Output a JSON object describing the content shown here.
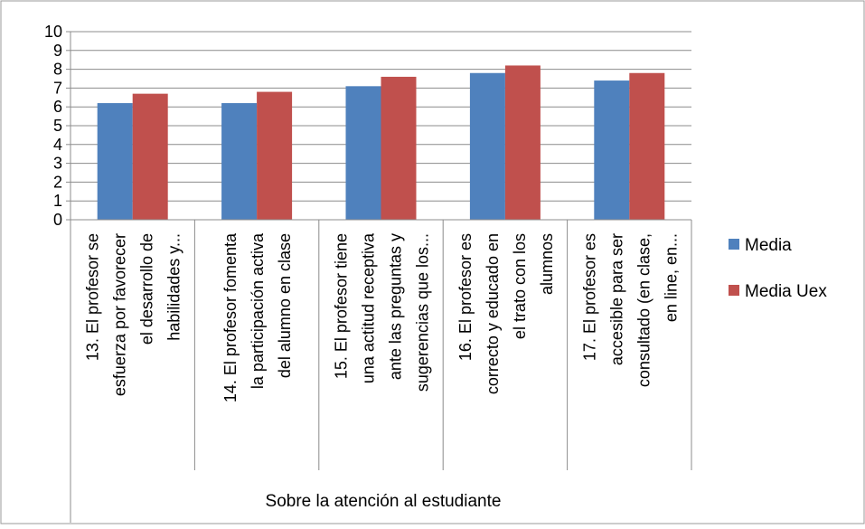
{
  "chart_data": {
    "type": "bar",
    "title": "",
    "xlabel": "Sobre la atención al estudiante",
    "ylabel": "",
    "ylim": [
      0,
      10
    ],
    "yticks": [
      0,
      1,
      2,
      3,
      4,
      5,
      6,
      7,
      8,
      9,
      10
    ],
    "grid": true,
    "legend": "right",
    "categories": [
      [
        "13. El profesor se",
        "esfuerza por favorecer",
        "el desarrollo de",
        "habilidades y..."
      ],
      [
        "14. El profesor fomenta",
        "la participación activa",
        "del alumno en clase"
      ],
      [
        "15. El profesor tiene",
        "una actitud receptiva",
        "ante las preguntas y",
        "sugerencias que los..."
      ],
      [
        "16. El profesor es",
        "correcto y educado en",
        "el trato con los",
        "alumnos"
      ],
      [
        "17. El profesor es",
        "accesible para ser",
        "consultado (en clase,",
        "en line, en..."
      ]
    ],
    "series": [
      {
        "name": "Media",
        "color": "#4f81bd",
        "values": [
          6.2,
          6.2,
          7.1,
          7.8,
          7.4
        ]
      },
      {
        "name": "Media Uex",
        "color": "#c0504d",
        "values": [
          6.7,
          6.8,
          7.6,
          8.2,
          7.8
        ]
      }
    ]
  }
}
